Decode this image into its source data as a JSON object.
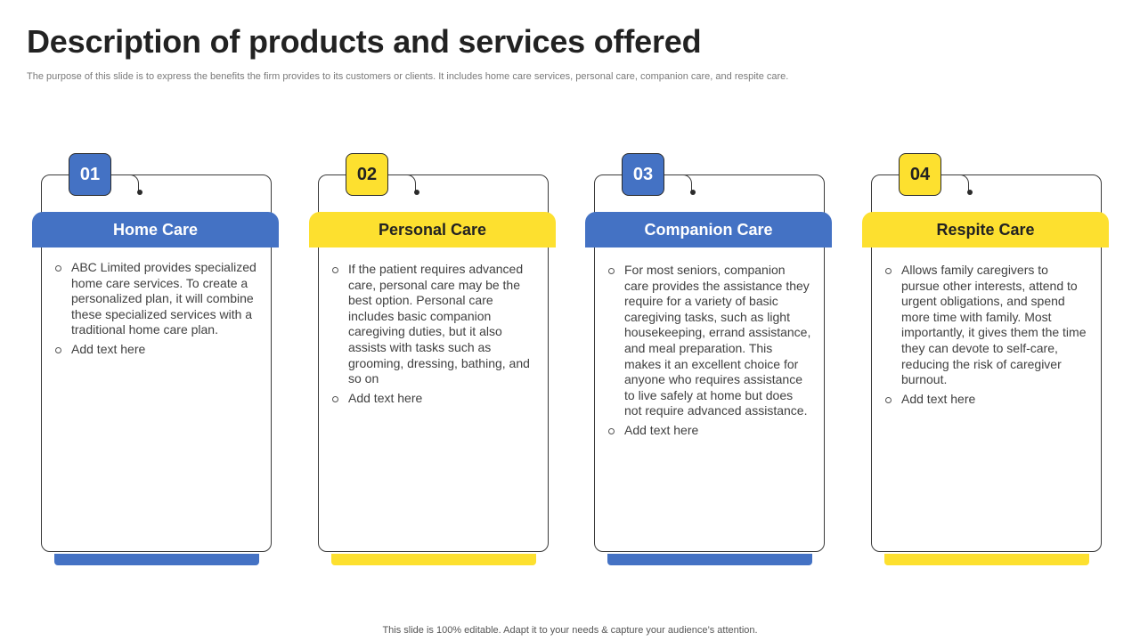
{
  "title": "Description of products and services offered",
  "subtitle": "The purpose of this slide is to express the benefits the firm provides to its customers or clients. It includes home care services, personal care, companion care, and respite care.",
  "colors": {
    "blue": "#4472c4",
    "yellow": "#fde02f"
  },
  "cards": [
    {
      "number": "01",
      "title": "Home Care",
      "bullets": [
        "ABC Limited provides specialized home care services. To create a personalized plan, it will combine these specialized services with a traditional home care plan.",
        "Add text here"
      ]
    },
    {
      "number": "02",
      "title": "Personal Care",
      "bullets": [
        "If the patient requires advanced care, personal care may be the best option. Personal care includes basic companion caregiving duties, but it also assists with tasks such as grooming, dressing, bathing, and so on",
        "Add text here"
      ]
    },
    {
      "number": "03",
      "title": "Companion Care",
      "bullets": [
        "For most seniors, companion care provides the assistance they require for a variety of basic caregiving tasks, such as light housekeeping, errand assistance, and meal preparation. This makes it an excellent choice for anyone who requires assistance to live safely at home but does not require advanced assistance.",
        "Add text here"
      ]
    },
    {
      "number": "04",
      "title": "Respite Care",
      "bullets": [
        "Allows family caregivers to pursue other interests, attend to urgent obligations, and spend more time with family. Most importantly, it gives them the time they can devote to self-care, reducing the risk of caregiver burnout.",
        "Add text here"
      ]
    }
  ],
  "footer": "This slide is 100% editable. Adapt it to your needs & capture your audience’s attention."
}
